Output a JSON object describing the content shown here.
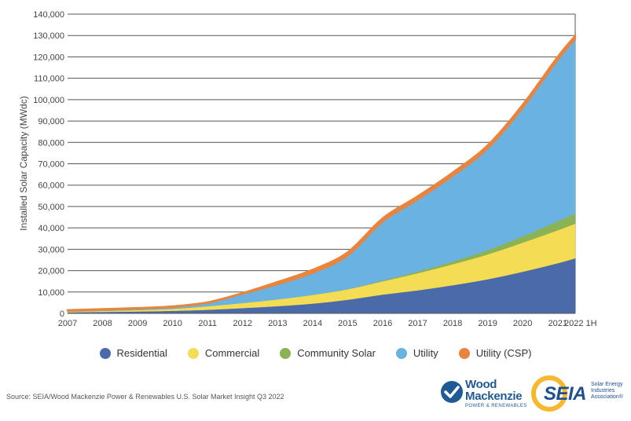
{
  "chart_data": {
    "type": "area",
    "stacked": true,
    "title": "",
    "xlabel": "",
    "ylabel": "Installed Solar Capacity (MWdc)",
    "ylim": [
      0,
      140000
    ],
    "yticks": [
      "0",
      "10,000",
      "20,000",
      "30,000",
      "40,000",
      "50,000",
      "60,000",
      "70,000",
      "80,000",
      "90,000",
      "100,000",
      "110,000",
      "120,000",
      "130,000",
      "140,000"
    ],
    "yticks_values": [
      0,
      10000,
      20000,
      30000,
      40000,
      50000,
      60000,
      70000,
      80000,
      90000,
      100000,
      110000,
      120000,
      130000,
      140000
    ],
    "x_labels": [
      "2007",
      "2008",
      "2009",
      "2010",
      "2011",
      "2012",
      "2013",
      "2014",
      "2015",
      "2016",
      "2017",
      "2018",
      "2019",
      "2020",
      "2021",
      "2022 1H"
    ],
    "x_tick_positions": [
      0,
      1,
      2,
      3,
      4,
      5,
      6,
      7,
      8,
      9,
      10,
      11,
      12,
      13,
      14,
      14.5
    ],
    "x": [
      0,
      1,
      2,
      3,
      4,
      5,
      6,
      7,
      8,
      9,
      10,
      11,
      12,
      13,
      14,
      14.5
    ],
    "grid": true,
    "legend_position": "bottom",
    "series": [
      {
        "name": "Residential",
        "color": "#4a6aaa",
        "values": [
          500,
          700,
          900,
          1200,
          1700,
          2500,
          3400,
          4600,
          6400,
          8800,
          10800,
          13200,
          16000,
          19500,
          23500,
          25800
        ]
      },
      {
        "name": "Commercial",
        "color": "#f5dc55",
        "values": [
          300,
          500,
          700,
          1000,
          1700,
          2400,
          3200,
          4100,
          4900,
          6200,
          8000,
          9800,
          11600,
          13600,
          15400,
          16200
        ]
      },
      {
        "name": "Community Solar",
        "color": "#8bb356",
        "values": [
          0,
          0,
          0,
          0,
          0,
          0,
          0,
          0,
          100,
          400,
          800,
          1300,
          2000,
          3000,
          4200,
          4700
        ]
      },
      {
        "name": "Utility",
        "color": "#6ab2e2",
        "values": [
          400,
          500,
          600,
          800,
          1500,
          4200,
          7000,
          10200,
          15600,
          27500,
          33600,
          40000,
          47500,
          60000,
          75400,
          81600
        ]
      },
      {
        "name": "Utility (CSP)",
        "color": "#e8843d",
        "values": [
          400,
          400,
          400,
          400,
          400,
          500,
          1200,
          1600,
          1700,
          1700,
          1700,
          1700,
          1700,
          1700,
          1700,
          1700
        ]
      }
    ]
  },
  "source": "Source: SEIA/Wood Mackenzie Power & Renewables U.S. Solar Market Insight Q3 2022",
  "logos": {
    "wood_mackenzie": {
      "name": "Wood\nMackenzie",
      "name_line1": "Wood",
      "name_line2": "Mackenzie",
      "subtitle": "POWER & RENEWABLES",
      "color": "#1f5a96"
    },
    "seia": {
      "name": "SEIA",
      "tagline": "Solar Energy Industries Association®",
      "color": "#1d4f91",
      "sun_color": "#f5b82e"
    }
  }
}
